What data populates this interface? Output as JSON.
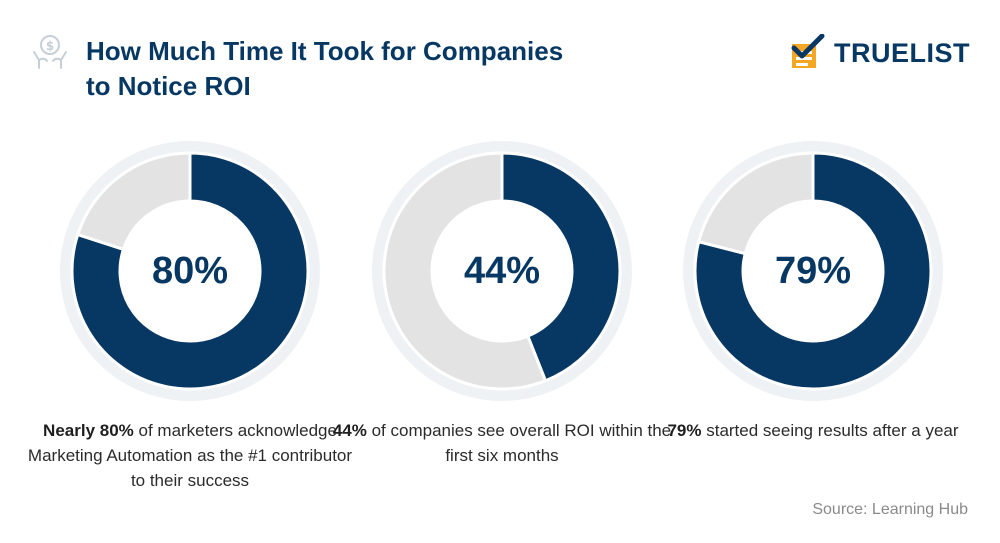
{
  "header": {
    "title_line1": "How Much Time It Took for Companies",
    "title_line2": "to Notice ROI",
    "logo_text": "TRUELIST",
    "title_icon": "money-hand-icon",
    "logo_icon": "checklist-icon"
  },
  "colors": {
    "primary": "#073763",
    "remainder": "#e3e3e3",
    "halo": "#eff2f5",
    "logo_orange": "#f5a623"
  },
  "chart_data": [
    {
      "type": "pie",
      "variant": "donut",
      "label": "80%",
      "values": [
        80,
        20
      ],
      "caption_bold": "Nearly 80%",
      "caption_rest": " of marketers acknowledge Marketing Automation as the #1 contributor to their success"
    },
    {
      "type": "pie",
      "variant": "donut",
      "label": "44%",
      "values": [
        44,
        56
      ],
      "caption_bold": "44%",
      "caption_rest": " of companies see overall ROI within the first six months"
    },
    {
      "type": "pie",
      "variant": "donut",
      "label": "79%",
      "values": [
        79,
        21
      ],
      "caption_bold": "79%",
      "caption_rest": " started seeing results after a year"
    }
  ],
  "source": "Source: Learning Hub"
}
